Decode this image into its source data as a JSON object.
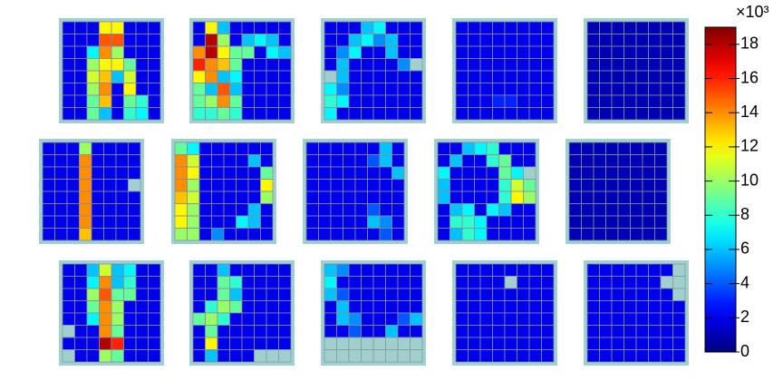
{
  "chart_data": {
    "type": "heatmap",
    "panels": [
      {
        "values": [
          [
            2,
            2,
            2,
            12,
            12,
            2,
            2,
            2
          ],
          [
            2,
            2,
            2,
            15,
            15,
            2,
            2,
            2
          ],
          [
            2,
            2,
            7,
            14,
            10,
            2,
            2,
            2
          ],
          [
            2,
            2,
            10,
            12,
            12,
            9,
            2,
            2
          ],
          [
            2,
            2,
            11,
            13,
            6,
            11,
            2,
            2
          ],
          [
            2,
            2,
            10,
            14,
            2,
            12,
            2,
            2
          ],
          [
            2,
            2,
            9,
            13,
            2,
            9,
            8,
            2
          ],
          [
            2,
            2,
            9,
            6,
            2,
            8,
            7,
            2
          ]
        ]
      },
      {
        "values": [
          [
            2,
            12,
            6,
            2,
            2,
            2,
            2,
            2
          ],
          [
            2,
            18,
            10,
            2,
            6,
            7,
            6,
            2
          ],
          [
            14,
            18,
            12,
            9,
            9,
            2,
            7,
            6
          ],
          [
            16,
            14,
            13,
            9,
            2,
            2,
            2,
            2
          ],
          [
            12,
            14,
            6,
            7,
            2,
            2,
            2,
            2
          ],
          [
            9,
            6,
            15,
            6,
            2,
            2,
            2,
            2
          ],
          [
            9,
            10,
            14,
            9,
            2,
            2,
            2,
            2
          ],
          [
            8,
            8,
            9,
            8,
            2,
            2,
            2,
            2
          ]
        ]
      },
      {
        "values": [
          [
            2,
            2,
            2,
            6,
            7,
            2,
            2,
            2
          ],
          [
            2,
            2,
            6,
            7,
            5,
            6,
            2,
            2
          ],
          [
            2,
            5,
            7,
            2,
            2,
            6,
            2,
            2
          ],
          [
            2,
            6,
            2,
            2,
            2,
            2,
            5,
            null
          ],
          [
            null,
            6,
            2,
            2,
            2,
            2,
            2,
            2
          ],
          [
            7,
            5,
            2,
            2,
            2,
            2,
            2,
            2
          ],
          [
            8,
            7,
            2,
            2,
            2,
            2,
            2,
            2
          ],
          [
            7,
            2,
            2,
            2,
            2,
            2,
            2,
            2
          ]
        ]
      },
      {
        "values": [
          [
            2,
            2,
            2,
            2,
            2,
            2,
            2,
            2
          ],
          [
            2,
            2,
            2,
            2,
            2,
            2,
            2,
            2
          ],
          [
            2,
            2,
            2,
            2,
            2,
            2,
            2,
            2
          ],
          [
            2,
            2,
            2,
            2,
            2,
            2,
            2,
            2
          ],
          [
            2,
            2,
            2,
            2,
            2,
            2,
            2,
            2
          ],
          [
            2,
            2,
            2,
            2,
            2,
            2,
            2,
            2
          ],
          [
            2,
            2,
            2,
            3,
            3,
            2,
            2,
            2
          ],
          [
            2,
            2,
            2,
            2,
            2,
            2,
            2,
            2
          ]
        ]
      },
      {
        "values": [
          [
            1,
            1,
            1,
            1,
            1,
            1,
            1,
            1
          ],
          [
            1,
            1,
            1,
            1,
            1,
            1,
            1,
            1
          ],
          [
            1,
            1,
            1,
            1,
            1,
            1,
            1,
            1
          ],
          [
            1,
            1,
            1,
            1,
            1,
            1,
            1,
            1
          ],
          [
            1,
            1,
            1,
            1,
            1,
            1,
            1,
            1
          ],
          [
            1,
            1,
            1,
            1,
            1,
            1,
            1,
            1
          ],
          [
            1,
            1,
            1,
            1,
            1,
            1,
            1,
            1
          ],
          [
            1,
            1,
            1,
            1,
            1,
            1,
            1,
            1
          ]
        ]
      },
      {
        "values": [
          [
            2,
            2,
            2,
            10,
            2,
            2,
            2,
            2
          ],
          [
            2,
            2,
            2,
            14,
            2,
            2,
            2,
            2
          ],
          [
            2,
            2,
            2,
            14,
            2,
            2,
            2,
            2
          ],
          [
            2,
            2,
            2,
            14,
            2,
            2,
            2,
            null
          ],
          [
            2,
            2,
            2,
            14,
            2,
            2,
            2,
            2
          ],
          [
            2,
            2,
            2,
            14,
            2,
            2,
            2,
            2
          ],
          [
            2,
            2,
            2,
            14,
            2,
            2,
            2,
            2
          ],
          [
            2,
            2,
            2,
            13,
            2,
            2,
            2,
            2
          ]
        ]
      },
      {
        "values": [
          [
            9,
            7,
            2,
            2,
            2,
            2,
            2,
            2
          ],
          [
            14,
            11,
            2,
            2,
            2,
            2,
            6,
            2
          ],
          [
            14,
            12,
            2,
            2,
            2,
            2,
            2,
            9
          ],
          [
            14,
            10,
            2,
            2,
            2,
            2,
            2,
            12
          ],
          [
            13,
            11,
            2,
            2,
            2,
            2,
            2,
            10
          ],
          [
            12,
            10,
            2,
            2,
            2,
            2,
            6,
            2
          ],
          [
            12,
            10,
            2,
            2,
            2,
            7,
            6,
            2
          ],
          [
            10,
            10,
            2,
            5,
            2,
            2,
            2,
            2
          ]
        ]
      },
      {
        "values": [
          [
            2,
            2,
            2,
            2,
            2,
            2,
            6,
            2
          ],
          [
            2,
            2,
            2,
            2,
            2,
            4,
            6,
            2
          ],
          [
            2,
            2,
            2,
            2,
            2,
            2,
            2,
            6
          ],
          [
            2,
            2,
            2,
            2,
            2,
            2,
            2,
            2
          ],
          [
            2,
            2,
            2,
            2,
            2,
            2,
            2,
            2
          ],
          [
            2,
            2,
            2,
            2,
            2,
            4,
            2,
            2
          ],
          [
            2,
            2,
            2,
            2,
            2,
            6,
            5,
            2
          ],
          [
            2,
            2,
            2,
            2,
            2,
            2,
            4,
            2
          ]
        ]
      },
      {
        "values": [
          [
            2,
            2,
            6,
            7,
            8,
            2,
            2,
            2
          ],
          [
            2,
            6,
            2,
            2,
            8,
            9,
            2,
            2
          ],
          [
            7,
            2,
            2,
            2,
            2,
            9,
            7,
            null
          ],
          [
            6,
            2,
            2,
            2,
            2,
            8,
            11,
            9
          ],
          [
            6,
            2,
            2,
            2,
            2,
            8,
            12,
            10
          ],
          [
            2,
            6,
            7,
            2,
            7,
            6,
            2,
            2
          ],
          [
            2,
            8,
            8,
            7,
            2,
            2,
            2,
            2
          ],
          [
            2,
            6,
            8,
            7,
            2,
            2,
            2,
            2
          ]
        ]
      },
      {
        "values": [
          [
            1,
            1,
            1,
            1,
            1,
            1,
            1,
            1
          ],
          [
            1,
            1,
            1,
            1,
            1,
            1,
            1,
            1
          ],
          [
            1,
            1,
            1,
            1,
            1,
            1,
            1,
            1
          ],
          [
            1,
            1,
            1,
            1,
            1,
            1,
            1,
            1
          ],
          [
            1,
            1,
            1,
            1,
            1,
            1,
            1,
            1
          ],
          [
            1,
            1,
            1,
            1,
            1,
            1,
            1,
            1
          ],
          [
            1,
            1,
            1,
            1,
            1,
            1,
            1,
            1
          ],
          [
            1,
            1,
            1,
            1,
            1,
            1,
            1,
            1
          ]
        ]
      },
      {
        "values": [
          [
            2,
            2,
            6,
            11,
            6,
            7,
            2,
            2
          ],
          [
            2,
            2,
            7,
            14,
            6,
            8,
            2,
            2
          ],
          [
            2,
            2,
            10,
            15,
            9,
            9,
            2,
            2
          ],
          [
            2,
            2,
            9,
            14,
            10,
            2,
            2,
            2
          ],
          [
            2,
            2,
            7,
            14,
            10,
            2,
            2,
            2
          ],
          [
            null,
            2,
            2,
            14,
            9,
            2,
            2,
            2
          ],
          [
            2,
            2,
            2,
            18,
            16,
            2,
            2,
            2
          ],
          [
            null,
            2,
            2,
            10,
            9,
            2,
            2,
            2
          ]
        ]
      },
      {
        "values": [
          [
            2,
            2,
            6,
            2,
            2,
            2,
            2,
            2
          ],
          [
            2,
            2,
            9,
            8,
            2,
            2,
            2,
            2
          ],
          [
            2,
            2,
            9,
            6,
            2,
            2,
            2,
            2
          ],
          [
            2,
            8,
            10,
            9,
            2,
            2,
            2,
            2
          ],
          [
            9,
            10,
            8,
            2,
            2,
            2,
            2,
            2
          ],
          [
            2,
            9,
            2,
            2,
            2,
            2,
            2,
            2
          ],
          [
            2,
            12,
            2,
            2,
            2,
            2,
            2,
            2
          ],
          [
            2,
            6,
            2,
            2,
            2,
            null,
            null,
            null
          ]
        ]
      },
      {
        "values": [
          [
            6,
            5,
            2,
            2,
            2,
            2,
            2,
            2
          ],
          [
            7,
            2,
            2,
            2,
            2,
            2,
            2,
            2
          ],
          [
            6,
            4,
            2,
            2,
            2,
            2,
            2,
            2
          ],
          [
            2,
            6,
            2,
            2,
            2,
            2,
            2,
            2
          ],
          [
            2,
            6,
            5,
            2,
            2,
            2,
            4,
            6
          ],
          [
            2,
            2,
            4,
            2,
            2,
            6,
            2,
            2
          ],
          [
            null,
            null,
            null,
            null,
            null,
            null,
            null,
            null
          ],
          [
            null,
            null,
            null,
            null,
            null,
            null,
            null,
            null
          ]
        ]
      },
      {
        "values": [
          [
            2,
            2,
            2,
            2,
            2,
            2,
            2,
            2
          ],
          [
            2,
            2,
            2,
            2,
            null,
            2,
            2,
            2
          ],
          [
            2,
            2,
            2,
            2,
            2,
            2,
            2,
            2
          ],
          [
            2,
            2,
            2,
            2,
            2,
            2,
            2,
            2
          ],
          [
            2,
            2,
            2,
            2,
            2,
            2,
            2,
            2
          ],
          [
            2,
            2,
            2,
            2,
            2,
            2,
            2,
            2
          ],
          [
            2,
            2,
            2,
            2,
            2,
            2,
            2,
            2
          ],
          [
            2,
            2,
            2,
            2,
            2,
            2,
            2,
            2
          ]
        ]
      },
      {
        "values": [
          [
            2,
            2,
            2,
            2,
            2,
            2,
            2,
            null
          ],
          [
            2,
            2,
            2,
            2,
            2,
            2,
            null,
            null
          ],
          [
            2,
            2,
            2,
            2,
            2,
            2,
            2,
            null
          ],
          [
            2,
            2,
            2,
            2,
            2,
            2,
            2,
            2
          ],
          [
            2,
            2,
            2,
            2,
            2,
            2,
            2,
            2
          ],
          [
            2,
            2,
            2,
            2,
            2,
            2,
            2,
            2
          ],
          [
            2,
            2,
            2,
            2,
            2,
            2,
            2,
            2
          ],
          [
            2,
            2,
            2,
            2,
            2,
            2,
            2,
            2
          ]
        ]
      }
    ],
    "colormap": "jet",
    "colorbar_lim": [
      0,
      19
    ],
    "colorbar_ticks": [
      0,
      2,
      4,
      6,
      8,
      10,
      12,
      14,
      16,
      18
    ],
    "colorbar_label": "×10³"
  }
}
